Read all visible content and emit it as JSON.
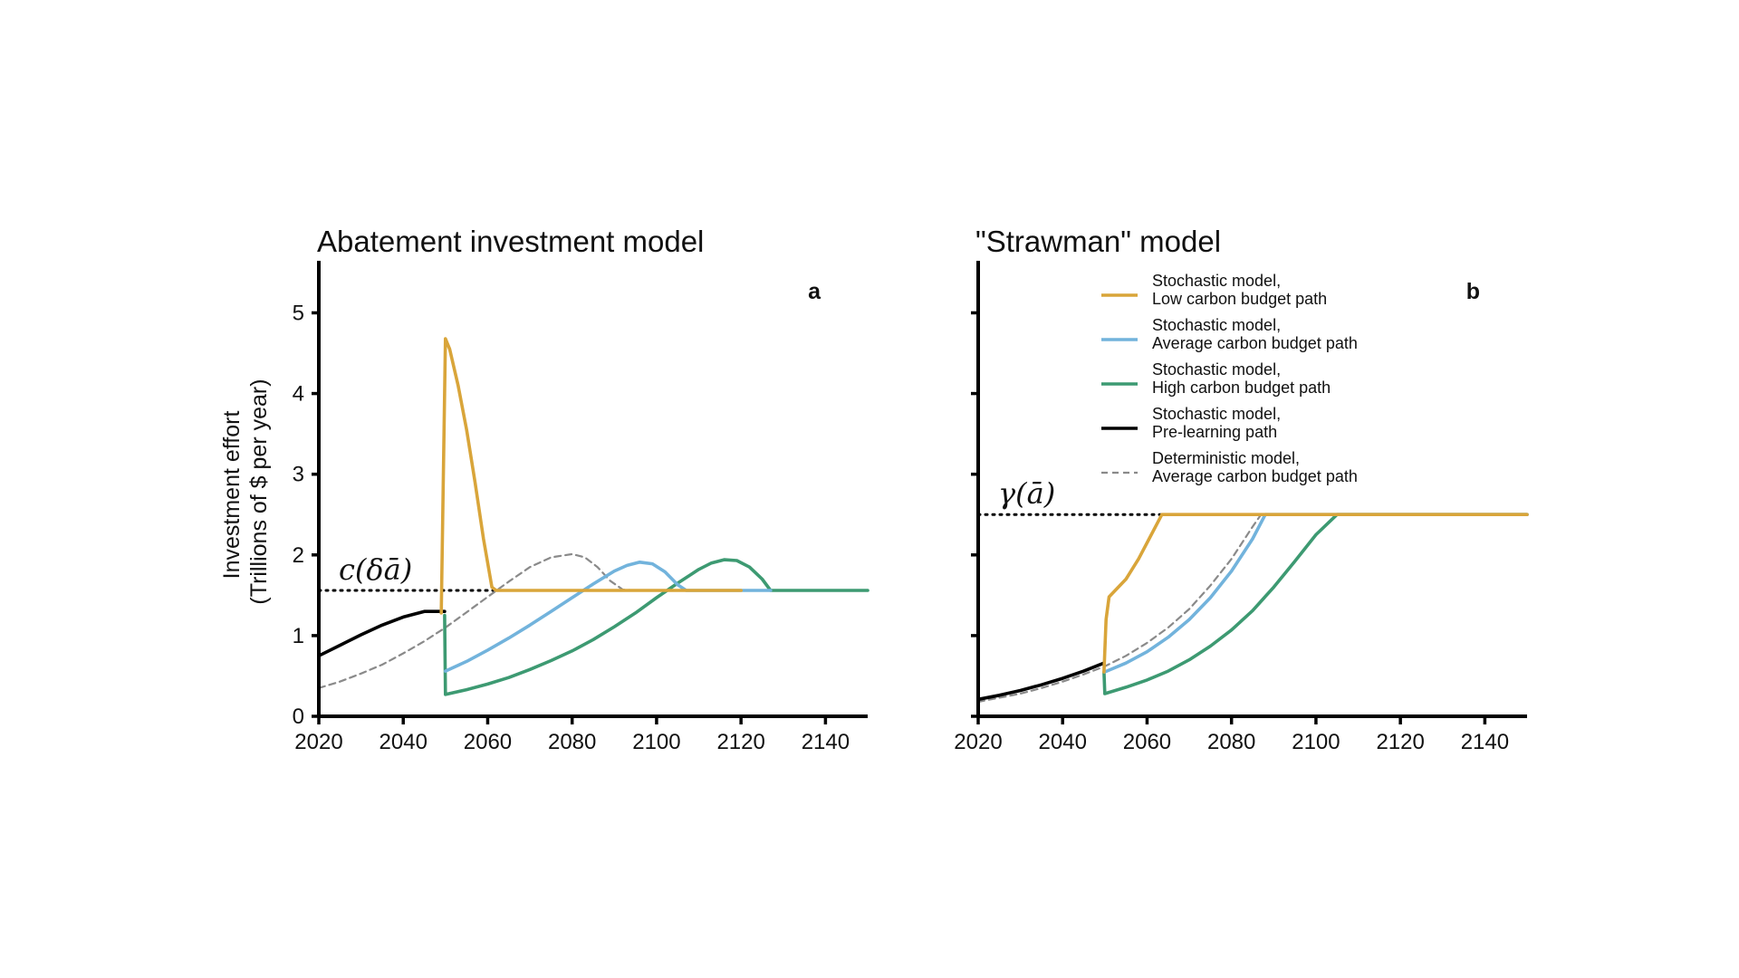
{
  "figure": {
    "ylabel_line1": "Investment effort",
    "ylabel_line2": "(Trillions of $ per year)"
  },
  "legend": [
    {
      "line1": "Stochastic model,",
      "line2": "Low carbon budget path",
      "color": "#d9a53a",
      "dash": false
    },
    {
      "line1": "Stochastic model,",
      "line2": "Average carbon budget path",
      "color": "#72b3dc",
      "dash": false
    },
    {
      "line1": "Stochastic model,",
      "line2": "High carbon budget path",
      "color": "#3d9a72",
      "dash": false
    },
    {
      "line1": "Stochastic model,",
      "line2": "Pre-learning path",
      "color": "#000000",
      "dash": false
    },
    {
      "line1": "Deterministic model,",
      "line2": "Average carbon budget path",
      "color": "#8a8a8a",
      "dash": true
    }
  ],
  "chart_data": [
    {
      "type": "line",
      "title": "Abatement investment model",
      "panel_letter": "a",
      "xlabel": "",
      "ylabel": "Investment effort (Trillions of $ per year)",
      "xlim": [
        2020,
        2150
      ],
      "ylim": [
        0,
        5.6
      ],
      "xticks": [
        2020,
        2040,
        2060,
        2080,
        2100,
        2120,
        2140
      ],
      "yticks": [
        0,
        1,
        2,
        3,
        4,
        5
      ],
      "show_ytick_labels": true,
      "grid": false,
      "reference_line": {
        "y": 1.56,
        "label": "c(δā)"
      },
      "series": [
        {
          "key": "deterministic",
          "color": "#8a8a8a",
          "dash": true,
          "x": [
            2020,
            2025,
            2030,
            2035,
            2040,
            2045,
            2050,
            2055,
            2060,
            2065,
            2070,
            2075,
            2080,
            2083,
            2086,
            2089,
            2092,
            2095,
            2100,
            2110,
            2120,
            2130,
            2140,
            2150
          ],
          "y": [
            0.35,
            0.43,
            0.53,
            0.64,
            0.78,
            0.93,
            1.1,
            1.29,
            1.48,
            1.67,
            1.85,
            1.97,
            2.01,
            1.97,
            1.85,
            1.68,
            1.57,
            1.56,
            1.56,
            1.56,
            1.56,
            1.56,
            1.56,
            1.56
          ]
        },
        {
          "key": "high",
          "color": "#3d9a72",
          "dash": false,
          "x": [
            2049.8,
            2050,
            2055,
            2060,
            2065,
            2070,
            2075,
            2080,
            2085,
            2090,
            2095,
            2100,
            2105,
            2110,
            2113,
            2116,
            2119,
            2122,
            2125,
            2127,
            2130,
            2140,
            2150
          ],
          "y": [
            1.25,
            0.27,
            0.33,
            0.4,
            0.48,
            0.58,
            0.69,
            0.81,
            0.95,
            1.11,
            1.28,
            1.47,
            1.65,
            1.82,
            1.9,
            1.94,
            1.93,
            1.85,
            1.7,
            1.56,
            1.56,
            1.56,
            1.56
          ]
        },
        {
          "key": "average",
          "color": "#72b3dc",
          "dash": false,
          "x": [
            2050,
            2055,
            2060,
            2065,
            2070,
            2075,
            2080,
            2085,
            2090,
            2093,
            2096,
            2099,
            2102,
            2105,
            2107,
            2110,
            2120,
            2127
          ],
          "y": [
            0.56,
            0.68,
            0.82,
            0.97,
            1.13,
            1.3,
            1.47,
            1.64,
            1.8,
            1.87,
            1.91,
            1.89,
            1.79,
            1.63,
            1.56,
            1.56,
            1.56,
            1.56
          ]
        },
        {
          "key": "pre-learning",
          "color": "#000000",
          "dash": false,
          "x": [
            2020,
            2025,
            2030,
            2035,
            2040,
            2045,
            2049.8
          ],
          "y": [
            0.75,
            0.88,
            1.01,
            1.13,
            1.23,
            1.3,
            1.3
          ]
        },
        {
          "key": "low",
          "color": "#d9a53a",
          "dash": false,
          "x": [
            2049,
            2050,
            2051,
            2053,
            2055,
            2057,
            2059,
            2061,
            2062,
            2070,
            2080,
            2090,
            2100,
            2110,
            2120
          ],
          "y": [
            1.28,
            4.68,
            4.55,
            4.1,
            3.55,
            2.9,
            2.2,
            1.6,
            1.56,
            1.56,
            1.56,
            1.56,
            1.56,
            1.56,
            1.56
          ]
        }
      ]
    },
    {
      "type": "line",
      "title": "\"Strawman\" model",
      "panel_letter": "b",
      "xlabel": "",
      "ylabel": "",
      "xlim": [
        2020,
        2150
      ],
      "ylim": [
        0,
        5.6
      ],
      "xticks": [
        2020,
        2040,
        2060,
        2080,
        2100,
        2120,
        2140
      ],
      "yticks": [
        0,
        1,
        2,
        3,
        4,
        5
      ],
      "show_ytick_labels": false,
      "grid": false,
      "reference_line": {
        "y": 2.5,
        "label": "γ(ā)"
      },
      "series": [
        {
          "key": "high",
          "color": "#3d9a72",
          "dash": false,
          "x": [
            2049.8,
            2050,
            2055,
            2060,
            2065,
            2070,
            2075,
            2080,
            2085,
            2090,
            2095,
            2100,
            2105,
            2110,
            2120,
            2130,
            2140,
            2150
          ],
          "y": [
            0.55,
            0.28,
            0.36,
            0.45,
            0.56,
            0.7,
            0.87,
            1.07,
            1.31,
            1.6,
            1.92,
            2.25,
            2.5,
            2.5,
            2.5,
            2.5,
            2.5,
            2.5
          ]
        },
        {
          "key": "deterministic",
          "color": "#8a8a8a",
          "dash": true,
          "x": [
            2020,
            2025,
            2030,
            2035,
            2040,
            2045,
            2050,
            2055,
            2060,
            2065,
            2070,
            2075,
            2080,
            2085,
            2087,
            2090,
            2100,
            2110,
            2120,
            2130,
            2140,
            2150
          ],
          "y": [
            0.18,
            0.23,
            0.28,
            0.35,
            0.43,
            0.52,
            0.62,
            0.75,
            0.91,
            1.1,
            1.33,
            1.62,
            1.95,
            2.35,
            2.5,
            2.5,
            2.5,
            2.5,
            2.5,
            2.5,
            2.5,
            2.5
          ]
        },
        {
          "key": "average",
          "color": "#72b3dc",
          "dash": false,
          "x": [
            2050,
            2055,
            2060,
            2065,
            2070,
            2075,
            2080,
            2085,
            2088,
            2090,
            2100,
            2110,
            2120,
            2130,
            2140,
            2150
          ],
          "y": [
            0.55,
            0.66,
            0.8,
            0.98,
            1.2,
            1.47,
            1.8,
            2.2,
            2.5,
            2.5,
            2.5,
            2.5,
            2.5,
            2.5,
            2.5,
            2.5
          ]
        },
        {
          "key": "pre-learning",
          "color": "#000000",
          "dash": false,
          "x": [
            2020,
            2025,
            2030,
            2035,
            2040,
            2045,
            2049.8
          ],
          "y": [
            0.21,
            0.26,
            0.32,
            0.39,
            0.47,
            0.56,
            0.66
          ]
        },
        {
          "key": "low",
          "color": "#d9a53a",
          "dash": false,
          "x": [
            2049.8,
            2050.3,
            2051,
            2055,
            2058,
            2061,
            2063.5,
            2070,
            2080,
            2090,
            2100,
            2110,
            2120,
            2130,
            2140,
            2150
          ],
          "y": [
            0.55,
            1.2,
            1.48,
            1.7,
            1.95,
            2.25,
            2.5,
            2.5,
            2.5,
            2.5,
            2.5,
            2.5,
            2.5,
            2.5,
            2.5,
            2.5
          ]
        }
      ]
    }
  ]
}
